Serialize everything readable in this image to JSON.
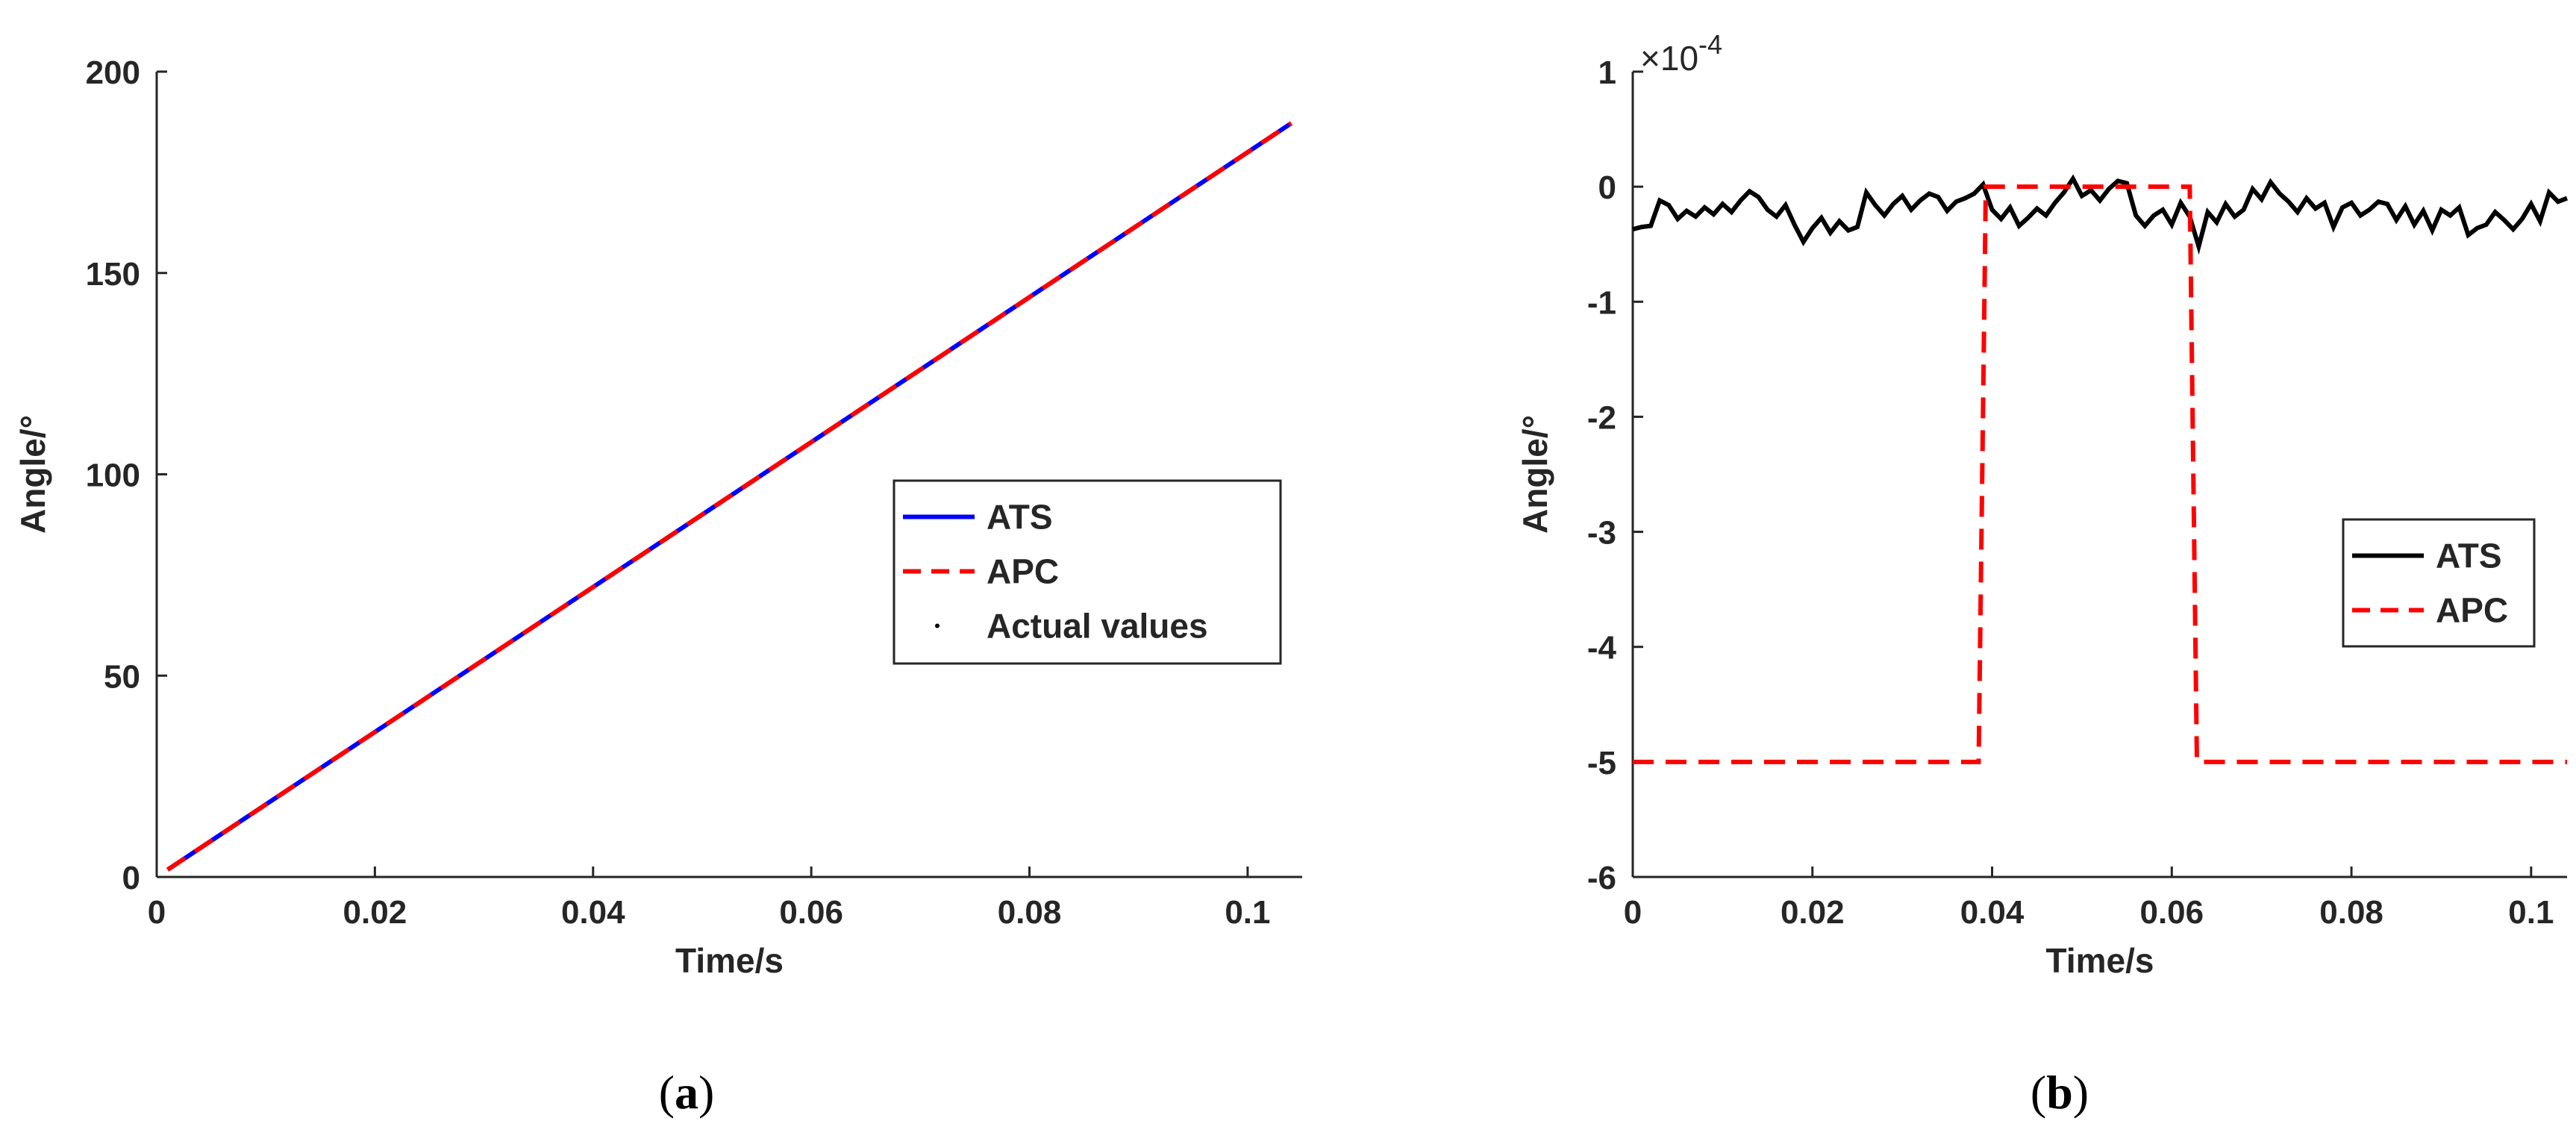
{
  "chart_data": [
    {
      "panel_label": "a",
      "type": "line",
      "xlabel": "Time/s",
      "ylabel": "Angle/°",
      "xlim": [
        0,
        0.105
      ],
      "ylim": [
        0,
        200
      ],
      "xticks": [
        0,
        0.02,
        0.04,
        0.06,
        0.08,
        0.1
      ],
      "yticks": [
        0,
        50,
        100,
        150,
        200
      ],
      "legend_position": "center-right",
      "series": [
        {
          "name": "ATS",
          "color": "#0000ff",
          "style": "solid",
          "x": [
            0.001,
            0.104
          ],
          "y": [
            1.8,
            187.2
          ]
        },
        {
          "name": "APC",
          "color": "#ff0000",
          "style": "dashed",
          "x": [
            0.001,
            0.104
          ],
          "y": [
            1.8,
            187.2
          ]
        },
        {
          "name": "Actual values",
          "color": "#000000",
          "style": "markers",
          "x": [
            0.001,
            0.104
          ],
          "y": [
            1.8,
            187.2
          ]
        }
      ]
    },
    {
      "panel_label": "b",
      "type": "line",
      "xlabel": "Time/s",
      "ylabel": "Angle/°",
      "y_multiplier": "×10",
      "y_exponent": "-4",
      "xlim": [
        0,
        0.104
      ],
      "ylim": [
        -6,
        1
      ],
      "xticks": [
        0,
        0.02,
        0.04,
        0.06,
        0.08,
        0.1
      ],
      "yticks": [
        1,
        0,
        -1,
        -2,
        -3,
        -4,
        -5,
        -6
      ],
      "legend_position": "right",
      "series": [
        {
          "name": "ATS",
          "color": "#000000",
          "style": "solid",
          "x": [
            0,
            0.001,
            0.002,
            0.003,
            0.004,
            0.005,
            0.006,
            0.007,
            0.008,
            0.009,
            0.01,
            0.011,
            0.012,
            0.013,
            0.014,
            0.015,
            0.016,
            0.017,
            0.018,
            0.019,
            0.02,
            0.021,
            0.022,
            0.023,
            0.024,
            0.025,
            0.026,
            0.027,
            0.028,
            0.029,
            0.03,
            0.031,
            0.032,
            0.033,
            0.034,
            0.035,
            0.036,
            0.037,
            0.038,
            0.039,
            0.04,
            0.041,
            0.042,
            0.043,
            0.044,
            0.045,
            0.046,
            0.047,
            0.048,
            0.049,
            0.05,
            0.051,
            0.052,
            0.053,
            0.054,
            0.055,
            0.056,
            0.057,
            0.058,
            0.059,
            0.06,
            0.061,
            0.062,
            0.063,
            0.064,
            0.065,
            0.066,
            0.067,
            0.068,
            0.069,
            0.07,
            0.071,
            0.072,
            0.073,
            0.074,
            0.075,
            0.076,
            0.077,
            0.078,
            0.079,
            0.08,
            0.081,
            0.082,
            0.083,
            0.084,
            0.085,
            0.086,
            0.087,
            0.088,
            0.089,
            0.09,
            0.091,
            0.092,
            0.093,
            0.094,
            0.095,
            0.096,
            0.097,
            0.098,
            0.099,
            0.1,
            0.101,
            0.102,
            0.103,
            0.104
          ],
          "y": [
            -0.37,
            -0.35,
            -0.34,
            -0.12,
            -0.16,
            -0.28,
            -0.21,
            -0.26,
            -0.18,
            -0.24,
            -0.15,
            -0.22,
            -0.12,
            -0.04,
            -0.09,
            -0.2,
            -0.26,
            -0.16,
            -0.33,
            -0.48,
            -0.36,
            -0.27,
            -0.4,
            -0.3,
            -0.38,
            -0.35,
            -0.05,
            -0.16,
            -0.25,
            -0.15,
            -0.08,
            -0.2,
            -0.12,
            -0.06,
            -0.09,
            -0.21,
            -0.13,
            -0.1,
            -0.06,
            0.02,
            -0.2,
            -0.28,
            -0.18,
            -0.34,
            -0.27,
            -0.19,
            -0.25,
            -0.14,
            -0.05,
            0.07,
            -0.08,
            -0.03,
            -0.12,
            -0.02,
            0.05,
            0.03,
            -0.25,
            -0.34,
            -0.25,
            -0.2,
            -0.33,
            -0.14,
            -0.26,
            -0.52,
            -0.22,
            -0.31,
            -0.15,
            -0.26,
            -0.2,
            -0.02,
            -0.11,
            0.04,
            -0.06,
            -0.13,
            -0.22,
            -0.1,
            -0.19,
            -0.14,
            -0.35,
            -0.18,
            -0.14,
            -0.25,
            -0.2,
            -0.13,
            -0.15,
            -0.29,
            -0.17,
            -0.33,
            -0.21,
            -0.38,
            -0.2,
            -0.25,
            -0.18,
            -0.42,
            -0.36,
            -0.33,
            -0.22,
            -0.29,
            -0.37,
            -0.28,
            -0.15,
            -0.3,
            -0.05,
            -0.13,
            -0.1
          ]
        },
        {
          "name": "APC",
          "color": "#ff0000",
          "style": "dashed",
          "x": [
            0,
            0.0385,
            0.0393,
            0.062,
            0.0628,
            0.104
          ],
          "y": [
            -5,
            -5,
            0,
            0,
            -5,
            -5
          ]
        }
      ]
    }
  ],
  "captions": {
    "a": "a",
    "b": "b"
  }
}
